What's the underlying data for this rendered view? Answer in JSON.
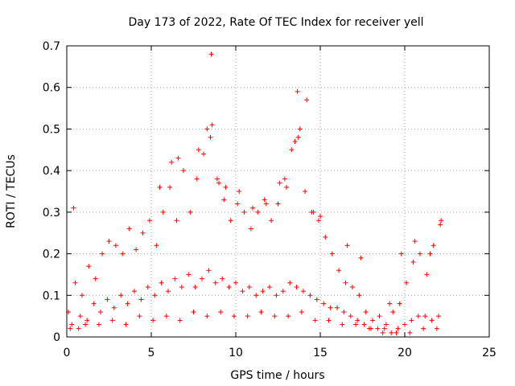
{
  "chart_data": {
    "type": "scatter",
    "title": "Day 173 of 2022, Rate Of TEC Index for receiver yell",
    "xlabel": "GPS time / hours",
    "ylabel": "ROTI / TECUs",
    "xlim": [
      0,
      25
    ],
    "ylim": [
      0,
      0.7
    ],
    "xticks": [
      "0",
      "5",
      "10",
      "15",
      "20",
      "25"
    ],
    "yticks": [
      "0",
      "0.1",
      "0.2",
      "0.3",
      "0.4",
      "0.5",
      "0.6",
      "0.7"
    ],
    "grid": true,
    "marker": "plus",
    "color": "#ff0000",
    "series": [
      {
        "x": [
          0.1,
          0.5,
          0.9,
          1.3,
          1.7,
          2.1,
          2.5,
          2.9,
          3.3,
          3.7,
          4.1,
          4.5,
          4.9,
          5.3,
          5.7,
          6.1,
          6.5,
          6.9,
          7.3,
          7.7,
          8.1,
          8.5,
          8.9,
          9.3,
          9.7,
          10.1,
          10.5,
          10.9,
          11.3,
          11.7,
          12.1,
          12.5,
          12.9,
          13.3,
          13.7,
          14.1,
          14.5,
          14.9,
          15.3,
          15.7,
          16.1,
          16.5,
          16.9,
          17.3,
          17.7,
          18.1,
          18.5,
          18.9,
          19.3,
          19.7,
          20.1,
          20.5,
          20.9,
          21.3,
          21.7,
          22.1
        ],
        "y": [
          0.06,
          0.13,
          0.1,
          0.17,
          0.14,
          0.2,
          0.23,
          0.22,
          0.2,
          0.26,
          0.21,
          0.25,
          0.28,
          0.22,
          0.3,
          0.36,
          0.28,
          0.4,
          0.3,
          0.38,
          0.44,
          0.48,
          0.38,
          0.33,
          0.28,
          0.32,
          0.3,
          0.26,
          0.3,
          0.33,
          0.28,
          0.32,
          0.38,
          0.45,
          0.48,
          0.35,
          0.3,
          0.28,
          0.24,
          0.2,
          0.16,
          0.13,
          0.12,
          0.1,
          0.06,
          0.04,
          0.05,
          0.03,
          0.06,
          0.08,
          0.13,
          0.18,
          0.2,
          0.15,
          0.22,
          0.27
        ]
      },
      {
        "x": [
          0.3,
          0.8,
          1.2,
          1.6,
          2.0,
          2.4,
          2.8,
          3.2,
          3.6,
          4.0,
          4.4,
          4.8,
          5.2,
          5.6,
          6.0,
          6.4,
          6.8,
          7.2,
          7.6,
          8.0,
          8.4,
          8.8,
          9.2,
          9.6,
          10.0,
          10.4,
          10.8,
          11.2,
          11.6,
          12.0,
          12.4,
          12.8,
          13.2,
          13.6,
          14.0,
          14.4,
          14.8,
          15.2,
          15.6,
          16.0,
          16.4,
          16.8,
          17.2,
          17.6,
          18.0,
          18.4,
          18.8,
          19.2,
          19.6,
          20.0,
          20.4,
          20.8,
          21.2,
          21.6,
          22.0
        ],
        "y": [
          0.03,
          0.05,
          0.04,
          0.08,
          0.06,
          0.09,
          0.07,
          0.1,
          0.08,
          0.11,
          0.09,
          0.12,
          0.1,
          0.13,
          0.11,
          0.14,
          0.12,
          0.15,
          0.12,
          0.14,
          0.16,
          0.13,
          0.14,
          0.12,
          0.13,
          0.11,
          0.12,
          0.1,
          0.11,
          0.12,
          0.1,
          0.11,
          0.13,
          0.12,
          0.11,
          0.1,
          0.09,
          0.08,
          0.07,
          0.07,
          0.06,
          0.05,
          0.04,
          0.03,
          0.02,
          0.02,
          0.02,
          0.01,
          0.02,
          0.03,
          0.04,
          0.05,
          0.05,
          0.04,
          0.05
        ]
      },
      {
        "x": [
          0.2,
          0.7,
          1.1,
          1.9,
          2.7,
          3.5,
          4.3,
          5.1,
          5.9,
          6.7,
          7.5,
          8.3,
          9.1,
          9.9,
          10.7,
          11.5,
          12.3,
          13.1,
          13.9,
          14.7,
          15.5,
          16.3,
          17.1,
          17.9,
          18.7,
          19.5,
          20.3,
          21.1,
          21.9
        ],
        "y": [
          0.02,
          0.02,
          0.03,
          0.03,
          0.04,
          0.03,
          0.05,
          0.04,
          0.05,
          0.04,
          0.06,
          0.05,
          0.06,
          0.05,
          0.05,
          0.06,
          0.05,
          0.05,
          0.06,
          0.04,
          0.04,
          0.03,
          0.03,
          0.02,
          0.01,
          0.01,
          0.01,
          0.02,
          0.02
        ]
      },
      {
        "x": [
          0.4,
          5.5,
          6.2,
          6.6,
          7.8,
          8.3,
          8.55,
          8.6,
          9.0,
          9.4,
          10.2,
          11.0,
          11.8,
          12.6,
          13.0,
          13.5,
          13.65,
          13.8,
          14.2,
          14.6,
          15.0,
          16.6,
          17.4,
          19.1,
          19.8,
          20.6,
          21.5,
          22.15
        ],
        "y": [
          0.31,
          0.36,
          0.42,
          0.43,
          0.45,
          0.5,
          0.68,
          0.51,
          0.37,
          0.36,
          0.35,
          0.31,
          0.32,
          0.37,
          0.36,
          0.47,
          0.59,
          0.5,
          0.57,
          0.3,
          0.29,
          0.22,
          0.19,
          0.08,
          0.2,
          0.23,
          0.2,
          0.28
        ]
      }
    ]
  }
}
